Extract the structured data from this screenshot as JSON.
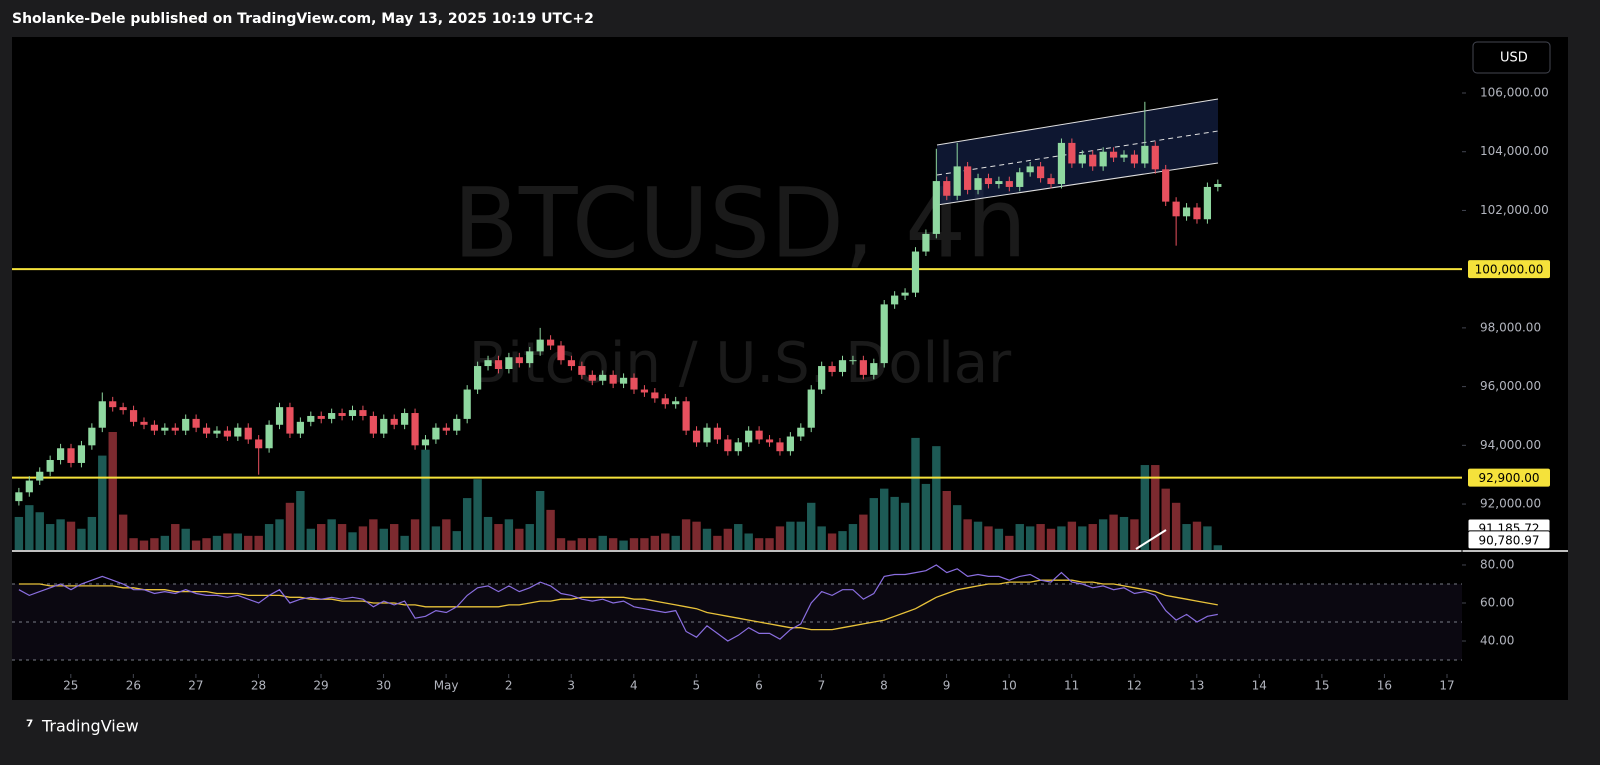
{
  "header": {
    "text": "Sholanke-Dele published on TradingView.com, May 13, 2025 10:19 UTC+2"
  },
  "footer": {
    "brand": "TradingView"
  },
  "chart_data": {
    "type": "candlestick",
    "currency": "USD",
    "watermark": {
      "symbol": "BTCUSD, 4h",
      "description": "Bitcoin / U.S. Dollar"
    },
    "open": [
      92100,
      92400,
      92800,
      93100,
      93500,
      93900,
      93400,
      94000,
      94600,
      95500,
      95300,
      95200,
      94800,
      94700,
      94500,
      94600,
      94500,
      94900,
      94600,
      94400,
      94500,
      94300,
      94600,
      94200,
      93900,
      94700,
      95300,
      94400,
      94800,
      95000,
      94900,
      95100,
      95000,
      95200,
      95000,
      94400,
      94900,
      94700,
      95100,
      94000,
      94200,
      94600,
      94500,
      94900,
      95900,
      96700,
      96900,
      96600,
      97000,
      96800,
      97200,
      97600,
      97400,
      96900,
      96700,
      96400,
      96200,
      96400,
      96100,
      96300,
      95900,
      95800,
      95600,
      95400,
      95500,
      94500,
      94100,
      94600,
      94200,
      93800,
      94100,
      94500,
      94200,
      94100,
      93800,
      94300,
      94600,
      95900,
      96700,
      96500,
      96900,
      96900,
      96400,
      96800,
      98800,
      99100,
      99200,
      100600,
      101200,
      103000,
      102500,
      103500,
      102700,
      103100,
      102900,
      103000,
      102800,
      103300,
      103500,
      103100,
      102900,
      104300,
      103600,
      103900,
      103500,
      104000,
      103800,
      103900,
      103600,
      104200,
      103400,
      102300,
      101800,
      102100,
      101700,
      102800
    ],
    "high": [
      92550,
      92950,
      93250,
      93650,
      94050,
      94050,
      94150,
      94750,
      95800,
      95650,
      95450,
      95350,
      94950,
      94850,
      94750,
      94750,
      95050,
      95050,
      94750,
      94650,
      94650,
      94750,
      94750,
      94350,
      94850,
      95450,
      95450,
      94950,
      95150,
      95150,
      95250,
      95250,
      95350,
      95350,
      95150,
      95050,
      95050,
      95250,
      95250,
      94350,
      94750,
      94750,
      95050,
      96050,
      96850,
      97050,
      97050,
      97150,
      97150,
      97350,
      98000,
      97750,
      97550,
      97050,
      96850,
      96550,
      96550,
      96550,
      96450,
      96450,
      96050,
      95950,
      95750,
      95650,
      95650,
      94650,
      94750,
      94750,
      94350,
      94250,
      94650,
      94650,
      94350,
      94250,
      94450,
      94750,
      96050,
      96850,
      96850,
      97050,
      97050,
      97050,
      96950,
      98950,
      99250,
      99350,
      100750,
      101350,
      104100,
      103150,
      104300,
      103650,
      103250,
      103250,
      103150,
      103150,
      103450,
      103650,
      103650,
      103250,
      104450,
      104450,
      104050,
      104050,
      104150,
      104150,
      104050,
      104050,
      105700,
      104350,
      103550,
      102450,
      102250,
      102250,
      102950,
      103050
    ],
    "low": [
      91950,
      92250,
      92650,
      92950,
      93350,
      93250,
      93250,
      93850,
      94450,
      95150,
      95050,
      94650,
      94550,
      94350,
      94350,
      94350,
      94350,
      94450,
      94250,
      94250,
      94150,
      94150,
      94050,
      93000,
      93750,
      94550,
      94250,
      94250,
      94650,
      94750,
      94750,
      94850,
      94850,
      94850,
      94250,
      94250,
      94550,
      94550,
      93850,
      93850,
      94050,
      94350,
      94350,
      94750,
      95750,
      96550,
      96450,
      96450,
      96650,
      96650,
      97050,
      97250,
      96750,
      96550,
      96250,
      96050,
      96050,
      95950,
      95950,
      95750,
      95650,
      95450,
      95250,
      95250,
      94350,
      93950,
      93950,
      94050,
      93650,
      93650,
      93950,
      94050,
      93950,
      93650,
      93650,
      94150,
      94450,
      95750,
      96350,
      96350,
      96750,
      96250,
      96250,
      96650,
      98650,
      98950,
      99050,
      100450,
      101050,
      102350,
      102350,
      102550,
      102550,
      102750,
      102750,
      102650,
      102650,
      103150,
      102950,
      102750,
      102750,
      103450,
      103450,
      103350,
      103350,
      103650,
      103650,
      103450,
      103450,
      103250,
      102150,
      100800,
      101650,
      101550,
      101550,
      102650
    ],
    "close": [
      92400,
      92800,
      93100,
      93500,
      93900,
      93400,
      94000,
      94600,
      95500,
      95300,
      95200,
      94800,
      94700,
      94500,
      94600,
      94500,
      94900,
      94600,
      94400,
      94500,
      94300,
      94600,
      94200,
      93900,
      94700,
      95300,
      94400,
      94800,
      95000,
      94900,
      95100,
      95000,
      95200,
      95000,
      94400,
      94900,
      94700,
      95100,
      94000,
      94200,
      94600,
      94500,
      94900,
      95900,
      96700,
      96900,
      96600,
      97000,
      96800,
      97200,
      97600,
      97400,
      96900,
      96700,
      96400,
      96200,
      96400,
      96100,
      96300,
      95900,
      95800,
      95600,
      95400,
      95500,
      94500,
      94100,
      94600,
      94200,
      93800,
      94100,
      94500,
      94200,
      94100,
      93800,
      94300,
      94600,
      95900,
      96700,
      96500,
      96900,
      96900,
      96400,
      96800,
      98800,
      99100,
      99200,
      100600,
      101200,
      103000,
      102500,
      103500,
      102700,
      103100,
      102900,
      103000,
      102800,
      103300,
      103500,
      103100,
      102900,
      104300,
      103600,
      103900,
      103500,
      104000,
      103800,
      103900,
      103600,
      104200,
      103400,
      102300,
      101800,
      102100,
      101700,
      102800,
      102900
    ],
    "up_color": "#8fd8a0",
    "down_color": "#e8505e",
    "volume": [
      28,
      38,
      32,
      22,
      26,
      24,
      18,
      28,
      80,
      100,
      30,
      10,
      8,
      10,
      12,
      22,
      18,
      8,
      10,
      12,
      14,
      14,
      12,
      12,
      22,
      26,
      40,
      50,
      18,
      22,
      26,
      22,
      15,
      20,
      26,
      18,
      22,
      12,
      26,
      85,
      20,
      26,
      16,
      44,
      60,
      28,
      22,
      26,
      18,
      22,
      50,
      34,
      10,
      8,
      10,
      10,
      12,
      10,
      8,
      10,
      10,
      12,
      14,
      12,
      26,
      24,
      18,
      12,
      18,
      22,
      14,
      10,
      10,
      20,
      24,
      24,
      40,
      20,
      14,
      16,
      22,
      30,
      44,
      52,
      45,
      40,
      95,
      56,
      88,
      50,
      38,
      26,
      24,
      20,
      18,
      12,
      22,
      20,
      22,
      18,
      20,
      24,
      20,
      22,
      26,
      30,
      28,
      26,
      72,
      72,
      52,
      40,
      22,
      24,
      20,
      4
    ],
    "volume_ylim": [
      0,
      100
    ],
    "volume_up_color": "#1d5a55",
    "volume_down_color": "#7c2a2f",
    "ylim": [
      90435,
      107907
    ],
    "yticks": [
      {
        "value": 92000,
        "label": "92,000.00"
      },
      {
        "value": 94000,
        "label": "94,000.00"
      },
      {
        "value": 96000,
        "label": "96,000.00"
      },
      {
        "value": 98000,
        "label": "98,000.00"
      },
      {
        "value": 102000,
        "label": "102,000.00"
      },
      {
        "value": 104000,
        "label": "104,000.00"
      },
      {
        "value": 106000,
        "label": "106,000.00"
      }
    ],
    "price_lines": [
      {
        "value": 100000,
        "label": "100,000.00",
        "color": "#f5e23b"
      },
      {
        "value": 92900,
        "label": "92,900.00",
        "color": "#f5e23b"
      }
    ],
    "last_labels": [
      {
        "value": 91185.72,
        "label": "91,185.72"
      },
      {
        "value": 90780.97,
        "label": "90,780.97"
      }
    ],
    "xlim": [
      -0.94,
      22.24
    ],
    "xticks": [
      {
        "value": 0,
        "label": "25"
      },
      {
        "value": 1,
        "label": "26"
      },
      {
        "value": 2,
        "label": "27"
      },
      {
        "value": 3,
        "label": "28"
      },
      {
        "value": 4,
        "label": "29"
      },
      {
        "value": 5,
        "label": "30"
      },
      {
        "value": 6,
        "label": "May"
      },
      {
        "value": 7,
        "label": "2"
      },
      {
        "value": 8,
        "label": "3"
      },
      {
        "value": 9,
        "label": "4"
      },
      {
        "value": 10,
        "label": "5"
      },
      {
        "value": 11,
        "label": "6"
      },
      {
        "value": 12,
        "label": "7"
      },
      {
        "value": 13,
        "label": "8"
      },
      {
        "value": 14,
        "label": "9"
      },
      {
        "value": 15,
        "label": "10"
      },
      {
        "value": 16,
        "label": "11"
      },
      {
        "value": 17,
        "label": "12"
      },
      {
        "value": 18,
        "label": "13"
      },
      {
        "value": 19,
        "label": "14"
      },
      {
        "value": 20,
        "label": "15"
      },
      {
        "value": 21,
        "label": "16"
      },
      {
        "value": 22,
        "label": "17"
      }
    ],
    "rsi": {
      "values": [
        67,
        64,
        66,
        68,
        70,
        67,
        70,
        72,
        74,
        72,
        70,
        67,
        67,
        65,
        66,
        65,
        67,
        65,
        64,
        64,
        63,
        64,
        62,
        60,
        64,
        67,
        60,
        62,
        63,
        62,
        63,
        62,
        63,
        62,
        58,
        61,
        59,
        61,
        52,
        53,
        56,
        55,
        58,
        64,
        68,
        69,
        66,
        69,
        66,
        68,
        71,
        69,
        65,
        64,
        62,
        61,
        62,
        60,
        61,
        58,
        57,
        56,
        55,
        56,
        45,
        42,
        48,
        44,
        40,
        43,
        47,
        44,
        44,
        41,
        46,
        49,
        60,
        66,
        64,
        67,
        67,
        62,
        65,
        74,
        75,
        75,
        76,
        77,
        80,
        76,
        78,
        74,
        75,
        74,
        74,
        72,
        74,
        75,
        72,
        71,
        76,
        71,
        70,
        68,
        69,
        67,
        68,
        65,
        66,
        64,
        56,
        51,
        54,
        50,
        53,
        54
      ],
      "color": "#8a6ee0",
      "ma_values": [
        70,
        70,
        70,
        69,
        69,
        69,
        69,
        69,
        69,
        69,
        68,
        68,
        67,
        67,
        67,
        66,
        66,
        66,
        66,
        65,
        65,
        65,
        64,
        64,
        64,
        64,
        63,
        63,
        62,
        62,
        62,
        61,
        61,
        61,
        60,
        60,
        60,
        59,
        59,
        58,
        58,
        58,
        58,
        58,
        58,
        58,
        58,
        59,
        59,
        60,
        61,
        61,
        62,
        62,
        63,
        63,
        63,
        63,
        63,
        62,
        62,
        61,
        60,
        59,
        58,
        57,
        55,
        54,
        53,
        52,
        51,
        50,
        49,
        48,
        47,
        47,
        46,
        46,
        46,
        47,
        48,
        49,
        50,
        51,
        53,
        55,
        57,
        60,
        63,
        65,
        67,
        68,
        69,
        70,
        70,
        71,
        71,
        71,
        72,
        72,
        72,
        72,
        71,
        71,
        70,
        70,
        69,
        68,
        67,
        66,
        64,
        63,
        62,
        61,
        60,
        59
      ],
      "ma_color": "#e8c23a",
      "ylim": [
        23.7,
        86.3
      ],
      "yticks": [
        {
          "value": 80,
          "label": "80.00"
        },
        {
          "value": 60,
          "label": "60.00"
        },
        {
          "value": 40,
          "label": "40.00"
        }
      ],
      "bands": [
        70,
        50,
        30
      ]
    }
  }
}
